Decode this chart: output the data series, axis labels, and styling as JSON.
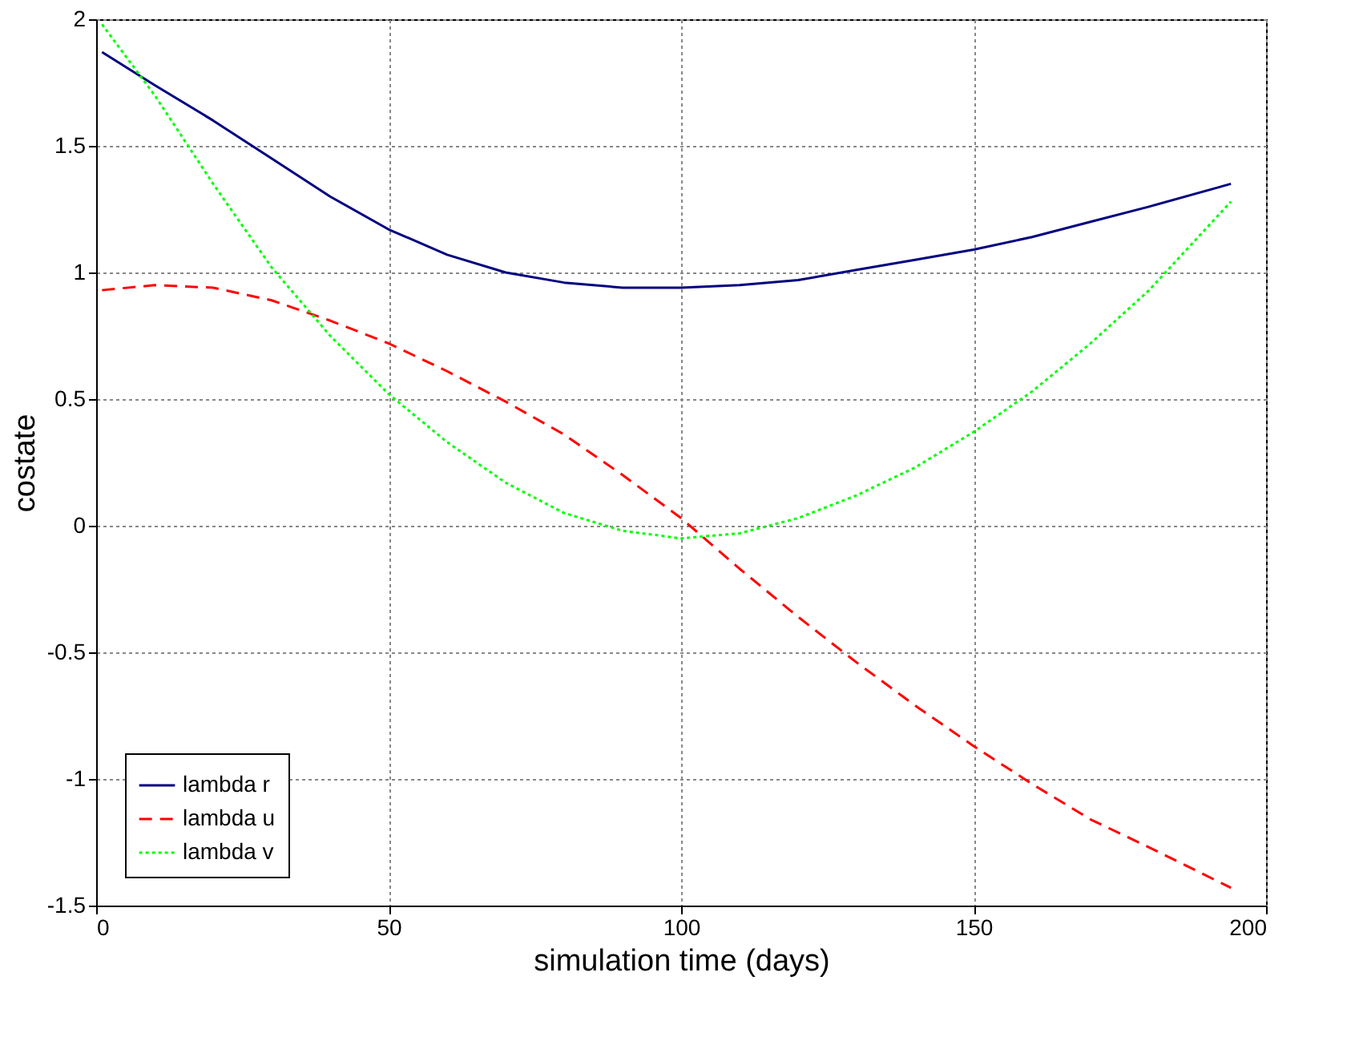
{
  "chart_data": {
    "type": "line",
    "xlabel": "simulation time (days)",
    "ylabel": "costate",
    "xlim": [
      0,
      200
    ],
    "ylim": [
      -1.5,
      2
    ],
    "xticks": [
      0,
      50,
      100,
      150,
      200
    ],
    "yticks": [
      -1.5,
      -1,
      -0.5,
      0,
      0.5,
      1,
      1.5,
      2
    ],
    "grid": true,
    "legend": "bottom left",
    "marker": "none",
    "x": [
      1,
      10,
      20,
      30,
      40,
      50,
      60,
      70,
      80,
      90,
      100,
      110,
      120,
      130,
      140,
      150,
      160,
      170,
      180,
      194
    ],
    "series": [
      {
        "name": "lambda r",
        "color": "#000080",
        "line_style": "solid",
        "values": [
          1.87,
          1.74,
          1.6,
          1.45,
          1.3,
          1.17,
          1.07,
          1.0,
          0.96,
          0.94,
          0.94,
          0.95,
          0.97,
          1.01,
          1.05,
          1.09,
          1.14,
          1.2,
          1.26,
          1.35
        ]
      },
      {
        "name": "lambda u",
        "color": "#ff0000",
        "line_style": "dashed",
        "values": [
          0.93,
          0.95,
          0.94,
          0.89,
          0.81,
          0.72,
          0.61,
          0.49,
          0.36,
          0.2,
          0.03,
          -0.17,
          -0.36,
          -0.54,
          -0.71,
          -0.87,
          -1.02,
          -1.16,
          -1.27,
          -1.43
        ]
      },
      {
        "name": "lambda v",
        "color": "#00ff00",
        "line_style": "dotted",
        "values": [
          1.98,
          1.7,
          1.35,
          1.02,
          0.75,
          0.52,
          0.33,
          0.17,
          0.05,
          -0.02,
          -0.05,
          -0.03,
          0.03,
          0.12,
          0.23,
          0.37,
          0.53,
          0.72,
          0.93,
          1.28
        ]
      }
    ]
  }
}
